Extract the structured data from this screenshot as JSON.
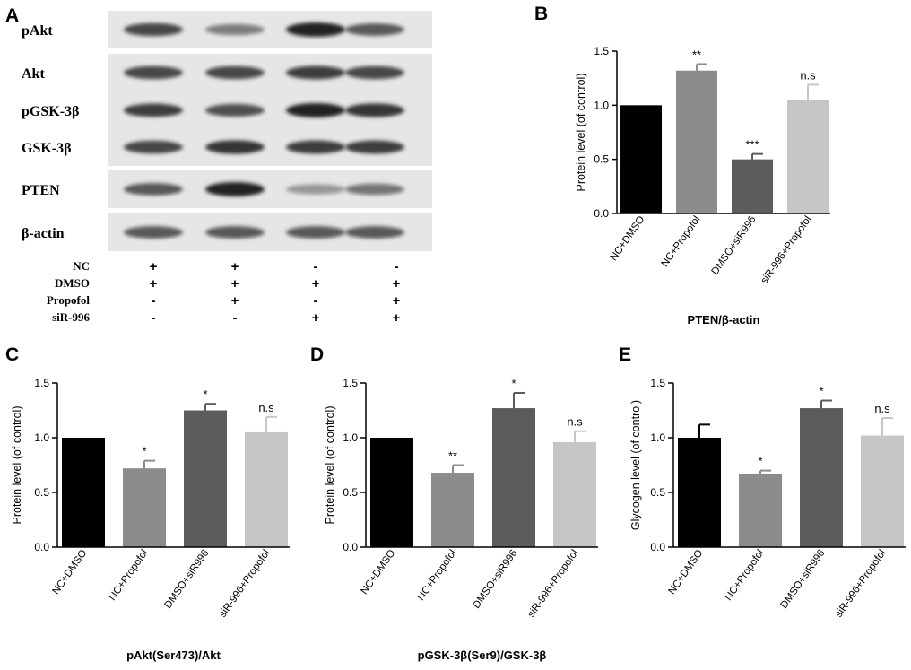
{
  "blot": {
    "panel_letter": "A",
    "rows": [
      {
        "label": "pAkt",
        "intensity": [
          0.8,
          0.5,
          1.0,
          0.7
        ]
      },
      {
        "label": "Akt",
        "intensity": [
          0.8,
          0.8,
          0.85,
          0.8
        ]
      },
      {
        "label": "pGSK-3β",
        "intensity": [
          0.85,
          0.75,
          1.0,
          0.9
        ]
      },
      {
        "label": "GSK-3β",
        "intensity": [
          0.8,
          0.9,
          0.85,
          0.85
        ]
      },
      {
        "label": "PTEN",
        "intensity": [
          0.7,
          1.0,
          0.35,
          0.55
        ]
      },
      {
        "label": "β-actin",
        "intensity": [
          0.7,
          0.7,
          0.7,
          0.7
        ]
      }
    ],
    "conditions": [
      {
        "label": "NC",
        "signs": [
          "+",
          "+",
          "-",
          "-"
        ]
      },
      {
        "label": "DMSO",
        "signs": [
          "+",
          "+",
          "+",
          "+"
        ]
      },
      {
        "label": "Propofol",
        "signs": [
          "-",
          "+",
          "-",
          "+"
        ]
      },
      {
        "label": "siR-996",
        "signs": [
          "-",
          "-",
          "+",
          "+"
        ]
      }
    ]
  },
  "chart_data": [
    {
      "panel_letter": "B",
      "type": "bar",
      "categories": [
        "NC+DMSO",
        "NC+Propofol",
        "DMSO+siR996",
        "siR-996+Propofol"
      ],
      "values": [
        1.0,
        1.32,
        0.5,
        1.05
      ],
      "errors": [
        0,
        0.06,
        0.05,
        0.14
      ],
      "significance": [
        "",
        "**",
        "***",
        "n.s"
      ],
      "ylabel": "Protein level (of control)",
      "xlabel": "PTEN/β-actin",
      "ylim": [
        0,
        1.5
      ],
      "yticks": [
        "0.0",
        "0.5",
        "1.0",
        "1.5"
      ],
      "colors": [
        "#000000",
        "#8c8c8c",
        "#5c5c5c",
        "#c6c6c6"
      ]
    },
    {
      "panel_letter": "C",
      "type": "bar",
      "categories": [
        "NC+DMSO",
        "NC+Propofol",
        "DMSO+siR996",
        "siR-996+Propofol"
      ],
      "values": [
        1.0,
        0.72,
        1.25,
        1.05
      ],
      "errors": [
        0,
        0.07,
        0.06,
        0.14
      ],
      "significance": [
        "",
        "*",
        "*",
        "n.s"
      ],
      "ylabel": "Protein level (of control)",
      "xlabel": "pAkt(Ser473)/Akt",
      "ylim": [
        0,
        1.5
      ],
      "yticks": [
        "0.0",
        "0.5",
        "1.0",
        "1.5"
      ],
      "colors": [
        "#000000",
        "#8c8c8c",
        "#5c5c5c",
        "#c6c6c6"
      ]
    },
    {
      "panel_letter": "D",
      "type": "bar",
      "categories": [
        "NC+DMSO",
        "NC+Propofol",
        "DMSO+siR996",
        "siR-996+Propofol"
      ],
      "values": [
        1.0,
        0.68,
        1.27,
        0.96
      ],
      "errors": [
        0,
        0.07,
        0.14,
        0.1
      ],
      "significance": [
        "",
        "**",
        "*",
        "n.s"
      ],
      "ylabel": "Protein level (of control)",
      "xlabel": "pGSK-3β(Ser9)/GSK-3β",
      "ylim": [
        0,
        1.5
      ],
      "yticks": [
        "0.0",
        "0.5",
        "1.0",
        "1.5"
      ],
      "colors": [
        "#000000",
        "#8c8c8c",
        "#5c5c5c",
        "#c6c6c6"
      ]
    },
    {
      "panel_letter": "E",
      "type": "bar",
      "categories": [
        "NC+DMSO",
        "NC+Propofol",
        "DMSO+siR996",
        "siR-996+Propofol"
      ],
      "values": [
        1.0,
        0.67,
        1.27,
        1.02
      ],
      "errors": [
        0.12,
        0.03,
        0.07,
        0.16
      ],
      "significance": [
        "",
        "*",
        "*",
        "n.s"
      ],
      "ylabel": "Glycogen level (of control)",
      "xlabel": "",
      "ylim": [
        0,
        1.5
      ],
      "yticks": [
        "0.0",
        "0.5",
        "1.0",
        "1.5"
      ],
      "colors": [
        "#000000",
        "#8c8c8c",
        "#5c5c5c",
        "#c6c6c6"
      ]
    }
  ]
}
